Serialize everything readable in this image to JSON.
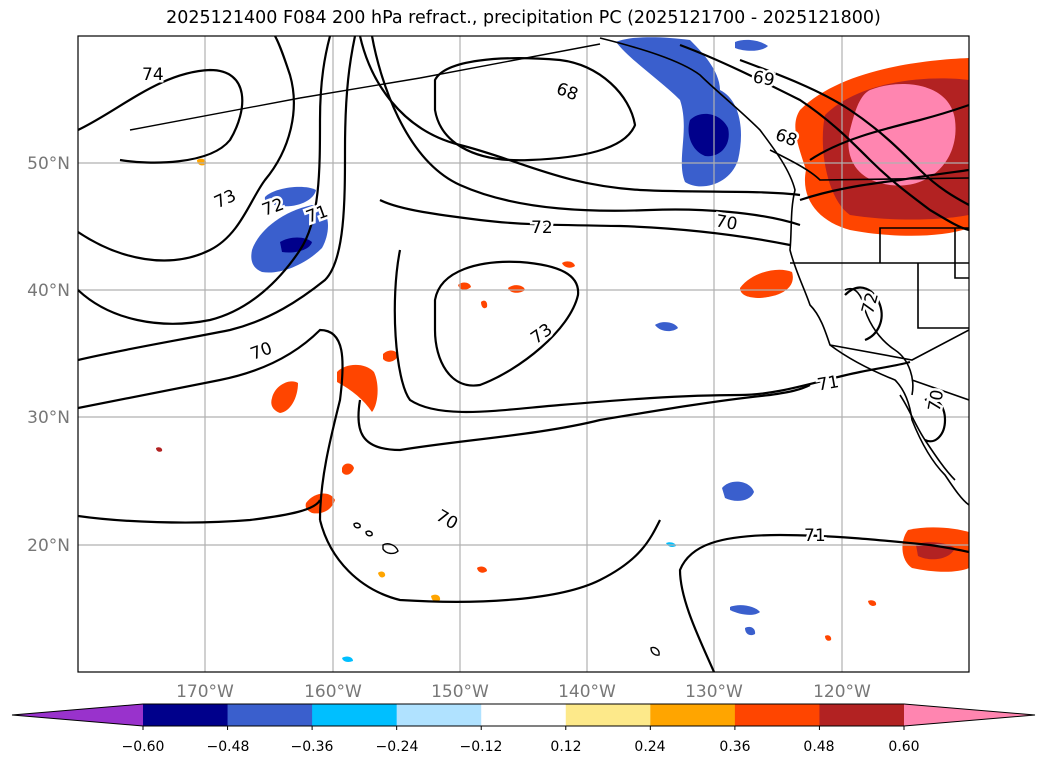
{
  "title": "2025121400 F084 200 hPa refract., precipitation PC (2025121700 - 2025121800)",
  "map": {
    "lat_labels": [
      "50°N",
      "40°N",
      "30°N",
      "20°N"
    ],
    "lon_labels": [
      "170°W",
      "160°W",
      "150°W",
      "140°W",
      "130°W",
      "120°W"
    ],
    "contour_labels": [
      "74",
      "73",
      "72",
      "71",
      "70",
      "68",
      "72",
      "73",
      "70",
      "69",
      "68",
      "70",
      "71",
      "71",
      "72",
      "70"
    ]
  },
  "colorbar": {
    "ticks": [
      "−0.60",
      "−0.48",
      "−0.36",
      "−0.24",
      "−0.12",
      "0.12",
      "0.24",
      "0.36",
      "0.48",
      "0.60"
    ],
    "colors": [
      "#9932cc",
      "#00008b",
      "#3a5fcd",
      "#00bfff",
      "#b0e2ff",
      "#ffffff",
      "#fde98a",
      "#ffa500",
      "#ff4500",
      "#b22222",
      "#ff85b0"
    ]
  }
}
